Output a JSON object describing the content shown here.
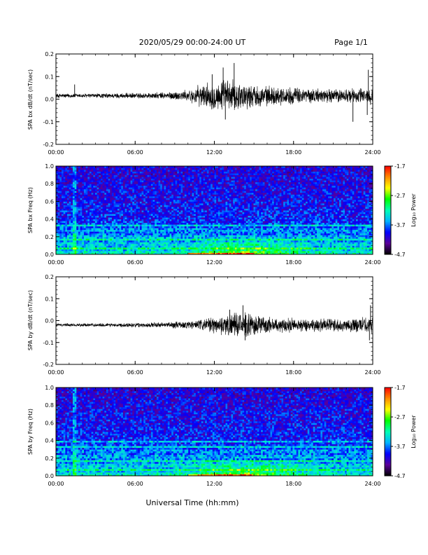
{
  "header": {
    "title": "2020/05/29  00:00-24:00 UT",
    "page": "Page 1/1"
  },
  "xaxis": {
    "title": "Universal Time (hh:mm)",
    "tick_labels": [
      "00:00",
      "06:00",
      "12:00",
      "18:00",
      "24:00"
    ]
  },
  "colors": {
    "colormap": [
      "#000000",
      "#5a009a",
      "#0000ff",
      "#00b4ff",
      "#00ffb4",
      "#00ff00",
      "#ffff00",
      "#ff8c00",
      "#ff0000"
    ],
    "trace": "#000000"
  },
  "chart_data": [
    {
      "type": "line",
      "panel": "bx-waveform",
      "ylabel": "SPA bx dB/dt (nT/sec)",
      "x_range": [
        "00:00",
        "24:00"
      ],
      "ylim": [
        -0.2,
        0.2
      ],
      "y_ticks": [
        "0.2",
        "0.1",
        "0.0",
        "-0.1",
        "-0.2"
      ],
      "baseline": 0.015,
      "envelope": {
        "x": [
          "00:00",
          "02:00",
          "04:00",
          "06:00",
          "08:00",
          "10:00",
          "11:00",
          "12:00",
          "13:00",
          "14:00",
          "15:00",
          "16:00",
          "18:00",
          "20:00",
          "22:00",
          "24:00"
        ],
        "half_amplitude": [
          0.008,
          0.008,
          0.009,
          0.01,
          0.012,
          0.02,
          0.04,
          0.05,
          0.06,
          0.05,
          0.04,
          0.035,
          0.03,
          0.025,
          0.025,
          0.03
        ]
      },
      "spikes": [
        {
          "x": "01:25",
          "y": 0.065
        },
        {
          "x": "11:50",
          "y": 0.11
        },
        {
          "x": "12:40",
          "y": 0.14
        },
        {
          "x": "13:30",
          "y": 0.16
        },
        {
          "x": "12:50",
          "y": -0.09
        },
        {
          "x": "22:30",
          "y": -0.1
        },
        {
          "x": "23:40",
          "y": 0.13
        },
        {
          "x": "23:35",
          "y": -0.07
        }
      ]
    },
    {
      "type": "heatmap",
      "panel": "bx-spectrogram",
      "ylabel": "SPA bx Freq (Hz)",
      "x_range": [
        "00:00",
        "24:00"
      ],
      "ylim": [
        0.0,
        1.0
      ],
      "y_ticks": [
        "1.0",
        "0.8",
        "0.6",
        "0.4",
        "0.2",
        "0.0"
      ],
      "colorbar": {
        "label": "Log₁₀ Power",
        "range": [
          -4.7,
          -1.7
        ],
        "ticks": [
          "-1.7",
          "-2.7",
          "-3.7",
          "-4.7"
        ]
      },
      "bright_freqs_hz": [
        0.02,
        0.07,
        0.12,
        0.17,
        0.2,
        0.28,
        0.33
      ],
      "vertical_line_time": "01:25"
    },
    {
      "type": "line",
      "panel": "by-waveform",
      "ylabel": "SPA by dB/dt (nT/sec)",
      "x_range": [
        "00:00",
        "24:00"
      ],
      "ylim": [
        -0.2,
        0.2
      ],
      "y_ticks": [
        "0.2",
        "0.1",
        "0.0",
        "-0.1",
        "-0.2"
      ],
      "baseline": -0.02,
      "envelope": {
        "x": [
          "00:00",
          "02:00",
          "04:00",
          "06:00",
          "08:00",
          "10:00",
          "11:00",
          "12:00",
          "13:00",
          "14:00",
          "15:00",
          "16:00",
          "18:00",
          "20:00",
          "22:00",
          "24:00"
        ],
        "half_amplitude": [
          0.006,
          0.006,
          0.007,
          0.008,
          0.01,
          0.015,
          0.02,
          0.03,
          0.04,
          0.045,
          0.04,
          0.03,
          0.025,
          0.025,
          0.025,
          0.03
        ]
      },
      "spikes": [
        {
          "x": "13:10",
          "y": 0.05
        },
        {
          "x": "14:10",
          "y": 0.07
        },
        {
          "x": "14:20",
          "y": -0.09
        },
        {
          "x": "23:50",
          "y": 0.07
        },
        {
          "x": "23:45",
          "y": -0.09
        }
      ]
    },
    {
      "type": "heatmap",
      "panel": "by-spectrogram",
      "ylabel": "SPA by Freq (Hz)",
      "x_range": [
        "00:00",
        "24:00"
      ],
      "ylim": [
        0.0,
        1.0
      ],
      "y_ticks": [
        "1.0",
        "0.8",
        "0.6",
        "0.4",
        "0.2",
        "0.0"
      ],
      "colorbar": {
        "label": "Log₁₀ Power",
        "range": [
          -4.7,
          -1.7
        ],
        "ticks": [
          "-1.7",
          "-2.7",
          "-3.7",
          "-4.7"
        ]
      },
      "bright_freqs_hz": [
        0.02,
        0.07,
        0.12,
        0.17,
        0.22,
        0.28,
        0.33,
        0.39
      ],
      "vertical_line_time": "01:25"
    }
  ]
}
